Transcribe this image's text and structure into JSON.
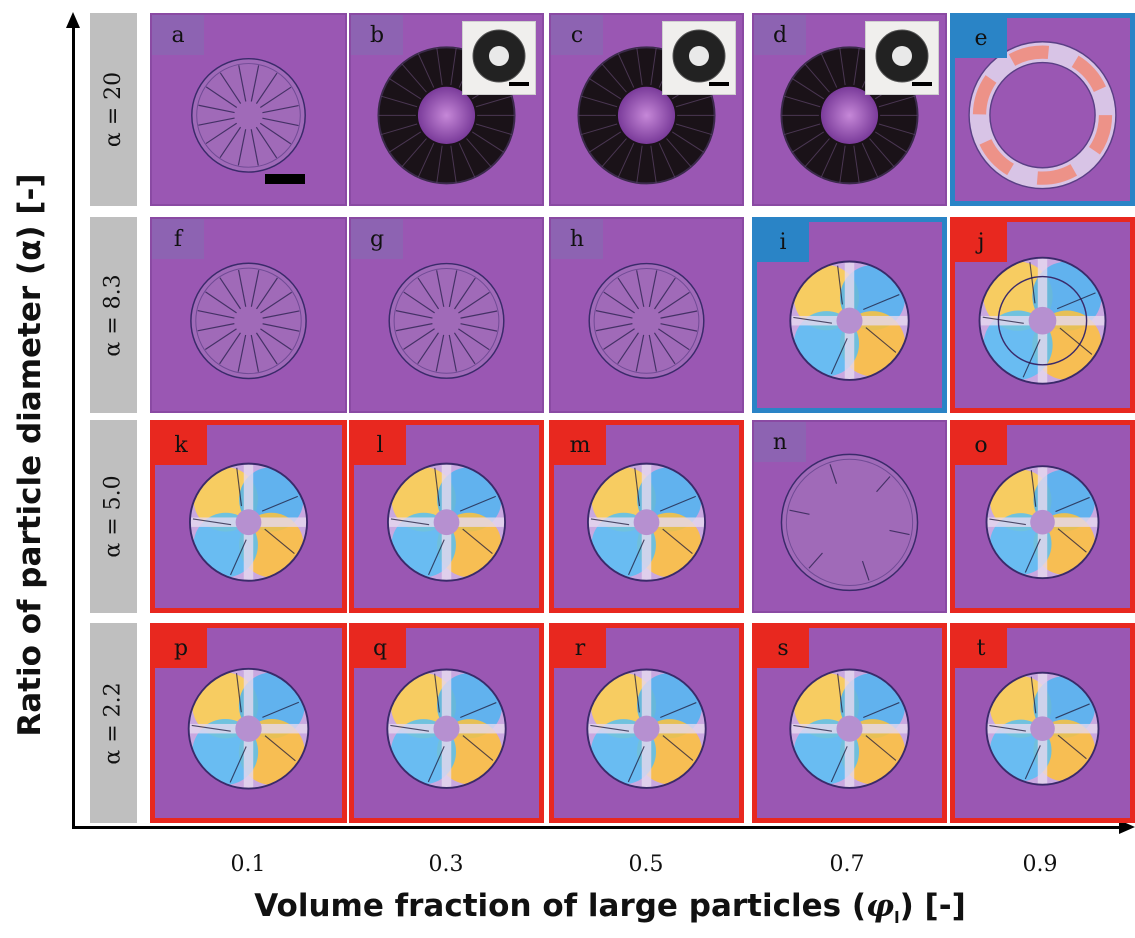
{
  "axes": {
    "y_label": "Ratio of particle diameter (α) [-]",
    "x_label_prefix": "Volume fraction of large particles (",
    "x_label_symbol": "φ",
    "x_label_sub": "l",
    "x_label_suffix": ")  [-]",
    "x_ticks": [
      "0.1",
      "0.3",
      "0.5",
      "0.7",
      "0.9"
    ]
  },
  "rows": [
    {
      "label": "α = 20",
      "panels": [
        {
          "letter": "a",
          "border": "none",
          "pattern": "cracked",
          "inset": false,
          "scalebar": true
        },
        {
          "letter": "b",
          "border": "none",
          "pattern": "dark-ring",
          "inset": true,
          "scalebar": false
        },
        {
          "letter": "c",
          "border": "none",
          "pattern": "dark-ring",
          "inset": true,
          "scalebar": false
        },
        {
          "letter": "d",
          "border": "none",
          "pattern": "dark-ring",
          "inset": true,
          "scalebar": false
        },
        {
          "letter": "e",
          "border": "blue",
          "pattern": "colored-ring",
          "inset": false,
          "scalebar": false
        }
      ]
    },
    {
      "label": "α = 8.3",
      "panels": [
        {
          "letter": "f",
          "border": "none",
          "pattern": "cracked",
          "inset": false,
          "scalebar": false
        },
        {
          "letter": "g",
          "border": "none",
          "pattern": "cracked",
          "inset": false,
          "scalebar": false
        },
        {
          "letter": "h",
          "border": "none",
          "pattern": "cracked",
          "inset": false,
          "scalebar": false
        },
        {
          "letter": "i",
          "border": "blue",
          "pattern": "birefringent",
          "inset": false,
          "scalebar": false
        },
        {
          "letter": "j",
          "border": "red",
          "pattern": "birefringent-ring",
          "inset": false,
          "scalebar": false
        }
      ]
    },
    {
      "label": "α = 5.0",
      "panels": [
        {
          "letter": "k",
          "border": "red",
          "pattern": "birefringent",
          "inset": false,
          "scalebar": false
        },
        {
          "letter": "l",
          "border": "red",
          "pattern": "birefringent",
          "inset": false,
          "scalebar": false
        },
        {
          "letter": "m",
          "border": "red",
          "pattern": "birefringent",
          "inset": false,
          "scalebar": false
        },
        {
          "letter": "n",
          "border": "none",
          "pattern": "faint",
          "inset": false,
          "scalebar": false
        },
        {
          "letter": "o",
          "border": "red",
          "pattern": "birefringent",
          "inset": false,
          "scalebar": false
        }
      ]
    },
    {
      "label": "α = 2.2",
      "panels": [
        {
          "letter": "p",
          "border": "red",
          "pattern": "birefringent",
          "inset": false,
          "scalebar": false
        },
        {
          "letter": "q",
          "border": "red",
          "pattern": "birefringent",
          "inset": false,
          "scalebar": false
        },
        {
          "letter": "r",
          "border": "red",
          "pattern": "birefringent",
          "inset": false,
          "scalebar": false
        },
        {
          "letter": "s",
          "border": "red",
          "pattern": "birefringent",
          "inset": false,
          "scalebar": false
        },
        {
          "letter": "t",
          "border": "red",
          "pattern": "birefringent",
          "inset": false,
          "scalebar": false
        }
      ]
    }
  ],
  "colors": {
    "background_magenta": "#9a57b3",
    "border_blue": "#2a84c6",
    "border_red": "#e8281f",
    "row_label_gray": "#bfbfbf"
  }
}
